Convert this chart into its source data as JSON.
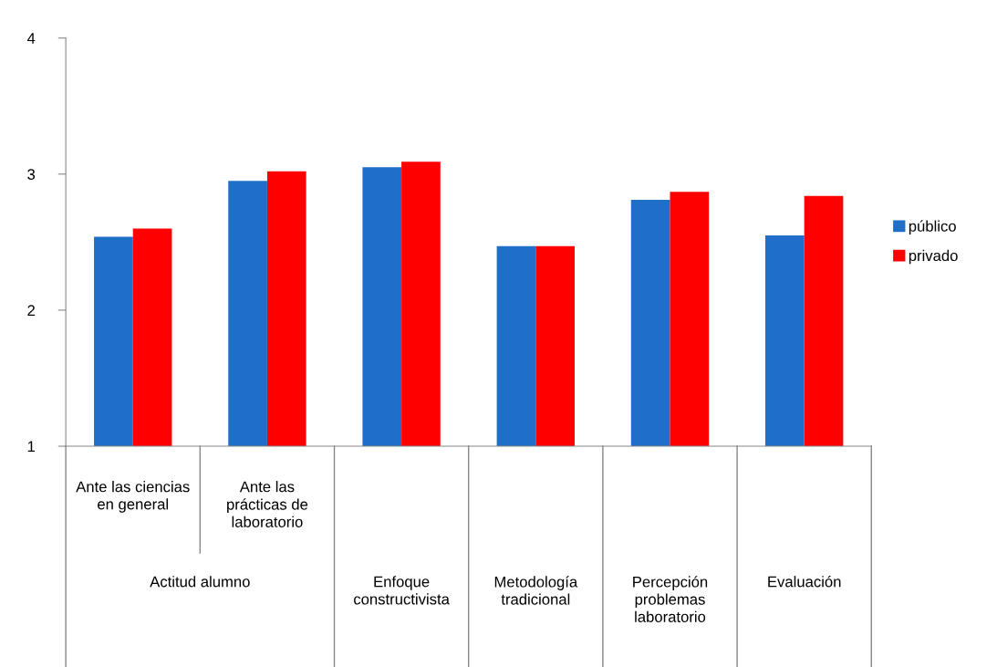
{
  "chart_data": {
    "type": "bar",
    "categories": [
      "Ante las ciencias\nen general",
      "Ante las\nprácticas de\nlaboratorio",
      null,
      null,
      null,
      null
    ],
    "series": [
      {
        "name": "público",
        "color": "#1f6fc8",
        "values": [
          2.54,
          2.95,
          3.05,
          2.47,
          2.81,
          2.55
        ]
      },
      {
        "name": "privado",
        "color": "#ff0000",
        "values": [
          2.6,
          3.02,
          3.09,
          2.47,
          2.87,
          2.84
        ]
      }
    ],
    "annotations": [
      "Actitud alumno",
      "Enfoque\nconstructivista",
      "Metodología\ntradicional",
      "Percepción\nproblemas\nlaboratorio",
      "Evaluación"
    ],
    "ylim": [
      1,
      4
    ],
    "yticks": [
      1,
      2,
      3,
      4
    ],
    "grid": false,
    "legend": "right"
  }
}
